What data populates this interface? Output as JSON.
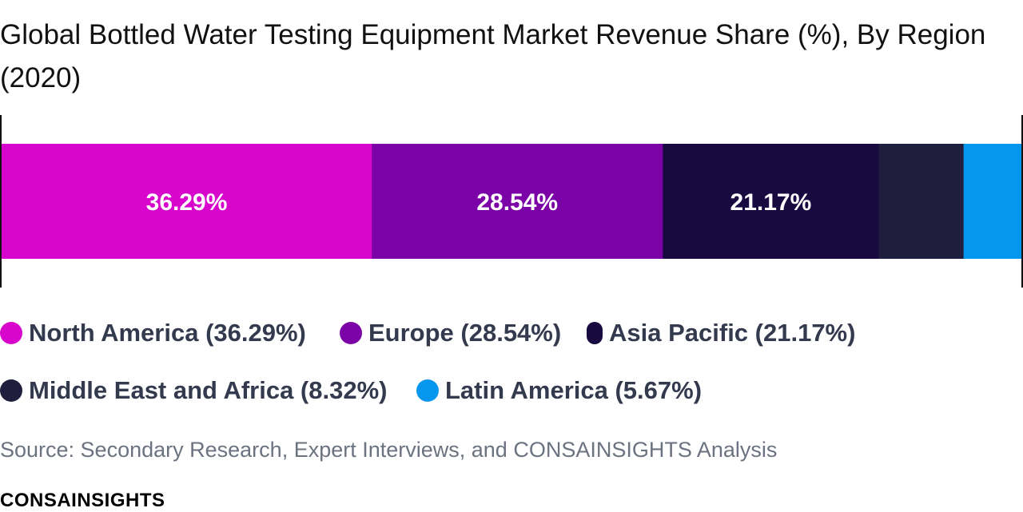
{
  "chart_data": {
    "type": "bar",
    "orientation": "horizontal-stacked-100",
    "title": "Global Bottled Water Testing Equipment Market Revenue Share (%), By Region (2020)",
    "categories": [
      "North America",
      "Europe",
      "Asia Pacific",
      "Middle East and Africa",
      "Latin America"
    ],
    "values": [
      36.29,
      28.54,
      21.17,
      8.32,
      5.67
    ],
    "colors": [
      "#d806cc",
      "#7b02a6",
      "#180a40",
      "#1f1f3d",
      "#0596f0"
    ],
    "data_labels": [
      "36.29%",
      "28.54%",
      "21.17%",
      "",
      ""
    ],
    "legend": [
      {
        "label": "North America (36.29%)",
        "color": "#d806cc"
      },
      {
        "label": "Europe (28.54%)",
        "color": "#7b02a6"
      },
      {
        "label": "Asia Pacific (21.17%)",
        "color": "#180a40"
      },
      {
        "label": "Middle East and Africa (8.32%)",
        "color": "#1f1f3d"
      },
      {
        "label": "Latin America (5.67%)",
        "color": "#0596f0"
      }
    ],
    "legend_position": "bottom",
    "xlim": [
      0,
      100
    ],
    "grid": false
  },
  "source": "Source: Secondary Research, Expert Interviews, and CONSAINSIGHTS Analysis",
  "brand": "CONSAINSIGHTS"
}
